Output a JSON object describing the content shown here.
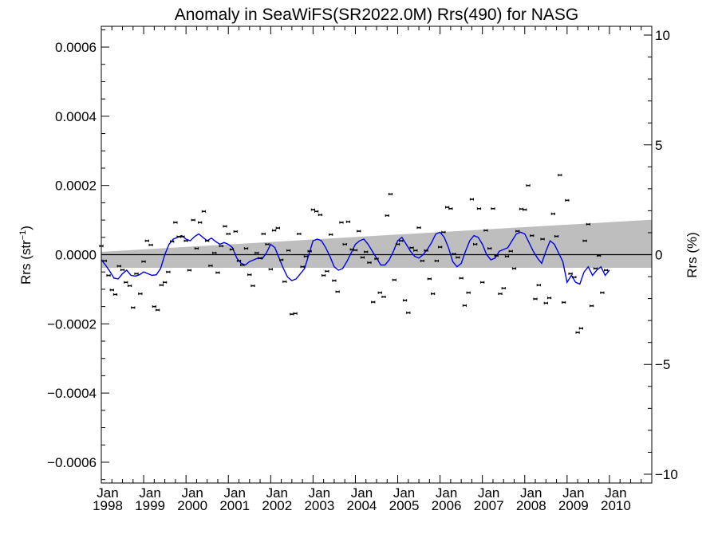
{
  "chart_data": {
    "type": "scatter",
    "title": "Anomaly in SeaWiFS(SR2022.0M) Rrs(490) for NASG",
    "ylabel_left": "Rrs (str",
    "ylabel_left_sup": "−1",
    "ylabel_left_close": ")",
    "ylabel_right": "Rrs (%)",
    "xlim": [
      1998.0,
      2011.0
    ],
    "ylim_left": [
      -0.00066,
      0.00066
    ],
    "ylim_right": [
      -10.4,
      10.4
    ],
    "yticks_left": [
      {
        "value": 0.0006,
        "label": "0.0006"
      },
      {
        "value": 0.0004,
        "label": "0.0004"
      },
      {
        "value": 0.0002,
        "label": "0.0002"
      },
      {
        "value": 0.0,
        "label": "0.0000"
      },
      {
        "value": -0.0002,
        "label": "−0.0002"
      },
      {
        "value": -0.0004,
        "label": "−0.0004"
      },
      {
        "value": -0.0006,
        "label": "−0.0006"
      }
    ],
    "yticks_right": [
      {
        "value": 10,
        "label": "10"
      },
      {
        "value": 5,
        "label": "5"
      },
      {
        "value": 0,
        "label": "0"
      },
      {
        "value": -5,
        "label": "−5"
      },
      {
        "value": -10,
        "label": "−10"
      }
    ],
    "xticks": [
      {
        "value": 1998,
        "month": "Jan",
        "year": "1998"
      },
      {
        "value": 1999,
        "month": "Jan",
        "year": "1999"
      },
      {
        "value": 2000,
        "month": "Jan",
        "year": "2000"
      },
      {
        "value": 2001,
        "month": "Jan",
        "year": "2001"
      },
      {
        "value": 2002,
        "month": "Jan",
        "year": "2002"
      },
      {
        "value": 2003,
        "month": "Jan",
        "year": "2003"
      },
      {
        "value": 2004,
        "month": "Jan",
        "year": "2004"
      },
      {
        "value": 2005,
        "month": "Jan",
        "year": "2005"
      },
      {
        "value": 2006,
        "month": "Jan",
        "year": "2006"
      },
      {
        "value": 2007,
        "month": "Jan",
        "year": "2007"
      },
      {
        "value": 2008,
        "month": "Jan",
        "year": "2008"
      },
      {
        "value": 2009,
        "month": "Jan",
        "year": "2009"
      },
      {
        "value": 2010,
        "month": "Jan",
        "year": "2010"
      }
    ],
    "zero_line": 0.0,
    "trend_band": {
      "x": [
        1998.0,
        2011.0
      ],
      "upper": [
        8e-06,
        0.000101
      ],
      "lower": [
        -3.8e-05,
        -3.8e-05
      ]
    },
    "points": [
      {
        "x": 1998.0,
        "y": 2.5e-05
      },
      {
        "x": 1998.08,
        "y": -1.8e-05
      },
      {
        "x": 1998.17,
        "y": -6e-05
      },
      {
        "x": 1998.25,
        "y": -0.000102
      },
      {
        "x": 1998.33,
        "y": -0.000115
      },
      {
        "x": 1998.42,
        "y": -3.3e-05
      },
      {
        "x": 1998.5,
        "y": -4.4e-05
      },
      {
        "x": 1998.58,
        "y": -8e-05
      },
      {
        "x": 1998.67,
        "y": -9e-05
      },
      {
        "x": 1998.75,
        "y": -0.000153
      },
      {
        "x": 1998.83,
        "y": -5.5e-05
      },
      {
        "x": 1998.92,
        "y": -0.000113
      },
      {
        "x": 1999.0,
        "y": -2e-05
      },
      {
        "x": 1999.08,
        "y": 4e-05
      },
      {
        "x": 1999.17,
        "y": 2.8e-05
      },
      {
        "x": 1999.25,
        "y": -0.00015
      },
      {
        "x": 1999.33,
        "y": -0.00016
      },
      {
        "x": 1999.42,
        "y": -8.8e-05
      },
      {
        "x": 1999.5,
        "y": -8e-05
      },
      {
        "x": 1999.58,
        "y": -5e-05
      },
      {
        "x": 1999.67,
        "y": 3.8e-05
      },
      {
        "x": 1999.75,
        "y": 9.3e-05
      },
      {
        "x": 1999.83,
        "y": 5.2e-05
      },
      {
        "x": 1999.92,
        "y": 5.2e-05
      },
      {
        "x": 2000.0,
        "y": 4e-05
      },
      {
        "x": 2000.08,
        "y": -4.5e-05
      },
      {
        "x": 2000.17,
        "y": 0.0001
      },
      {
        "x": 2000.25,
        "y": 1.8e-05
      },
      {
        "x": 2000.33,
        "y": 9.3e-05
      },
      {
        "x": 2000.42,
        "y": 0.000125
      },
      {
        "x": 2000.5,
        "y": 4e-05
      },
      {
        "x": 2000.58,
        "y": -3.2e-05
      },
      {
        "x": 2000.67,
        "y": 5e-06
      },
      {
        "x": 2000.75,
        "y": -5.2e-05
      },
      {
        "x": 2000.83,
        "y": 2.5e-05
      },
      {
        "x": 2000.92,
        "y": 8.2e-05
      },
      {
        "x": 2001.0,
        "y": 6e-05
      },
      {
        "x": 2001.08,
        "y": 1.5e-05
      },
      {
        "x": 2001.17,
        "y": 6.7e-05
      },
      {
        "x": 2001.25,
        "y": -1.8e-05
      },
      {
        "x": 2001.33,
        "y": -3e-05
      },
      {
        "x": 2001.42,
        "y": 1.8e-05
      },
      {
        "x": 2001.5,
        "y": -5.8e-05
      },
      {
        "x": 2001.58,
        "y": -9e-05
      },
      {
        "x": 2001.67,
        "y": 5e-06
      },
      {
        "x": 2001.75,
        "y": -1e-05
      },
      {
        "x": 2001.83,
        "y": 6e-05
      },
      {
        "x": 2001.92,
        "y": 3e-05
      },
      {
        "x": 2002.0,
        "y": -4.2e-05
      },
      {
        "x": 2002.08,
        "y": 7e-05
      },
      {
        "x": 2002.17,
        "y": 7.7e-05
      },
      {
        "x": 2002.25,
        "y": -1.5e-05
      },
      {
        "x": 2002.33,
        "y": -7.8e-05
      },
      {
        "x": 2002.42,
        "y": 1.2e-05
      },
      {
        "x": 2002.5,
        "y": -0.000172
      },
      {
        "x": 2002.58,
        "y": -0.00017
      },
      {
        "x": 2002.67,
        "y": 6e-05
      },
      {
        "x": 2002.75,
        "y": -3.5e-05
      },
      {
        "x": 2002.83,
        "y": -5e-06
      },
      {
        "x": 2002.92,
        "y": 1e-05
      },
      {
        "x": 2003.0,
        "y": 0.00013
      },
      {
        "x": 2003.08,
        "y": 0.000125
      },
      {
        "x": 2003.17,
        "y": 0.000115
      },
      {
        "x": 2003.25,
        "y": -6e-05
      },
      {
        "x": 2003.33,
        "y": -4.8e-05
      },
      {
        "x": 2003.42,
        "y": 5.8e-05
      },
      {
        "x": 2003.5,
        "y": -7.5e-05
      },
      {
        "x": 2003.58,
        "y": -0.000107
      },
      {
        "x": 2003.67,
        "y": 9.3e-05
      },
      {
        "x": 2003.75,
        "y": 3e-05
      },
      {
        "x": 2003.83,
        "y": 9.5e-05
      },
      {
        "x": 2003.92,
        "y": 1.5e-05
      },
      {
        "x": 2004.0,
        "y": 1.3e-05
      },
      {
        "x": 2004.08,
        "y": 6.8e-05
      },
      {
        "x": 2004.17,
        "y": -8e-06
      },
      {
        "x": 2004.25,
        "y": 8e-06
      },
      {
        "x": 2004.33,
        "y": -2.3e-05
      },
      {
        "x": 2004.42,
        "y": -0.000137
      },
      {
        "x": 2004.5,
        "y": -1.2e-05
      },
      {
        "x": 2004.58,
        "y": -0.00011
      },
      {
        "x": 2004.67,
        "y": -0.000122
      },
      {
        "x": 2004.75,
        "y": 0.000113
      },
      {
        "x": 2004.83,
        "y": 0.000175
      },
      {
        "x": 2004.92,
        "y": -7.3e-05
      },
      {
        "x": 2005.0,
        "y": 3e-05
      },
      {
        "x": 2005.08,
        "y": 4e-05
      },
      {
        "x": 2005.17,
        "y": -0.000132
      },
      {
        "x": 2005.25,
        "y": -0.000168
      },
      {
        "x": 2005.33,
        "y": 2e-05
      },
      {
        "x": 2005.42,
        "y": 1.2e-05
      },
      {
        "x": 2005.5,
        "y": 7.8e-05
      },
      {
        "x": 2005.58,
        "y": -1.8e-05
      },
      {
        "x": 2005.67,
        "y": 1.2e-05
      },
      {
        "x": 2005.75,
        "y": -7e-05
      },
      {
        "x": 2005.83,
        "y": -0.000113
      },
      {
        "x": 2005.92,
        "y": -1.8e-05
      },
      {
        "x": 2006.0,
        "y": 2.2e-05
      },
      {
        "x": 2006.08,
        "y": 6.5e-05
      },
      {
        "x": 2006.17,
        "y": 0.000137
      },
      {
        "x": 2006.25,
        "y": 0.000133
      },
      {
        "x": 2006.33,
        "y": 2e-06
      },
      {
        "x": 2006.42,
        "y": -8e-06
      },
      {
        "x": 2006.5,
        "y": -6.8e-05
      },
      {
        "x": 2006.58,
        "y": -0.000147
      },
      {
        "x": 2006.67,
        "y": -0.00011
      },
      {
        "x": 2006.75,
        "y": 0.00016
      },
      {
        "x": 2006.83,
        "y": 3e-05
      },
      {
        "x": 2006.92,
        "y": 0.000133
      },
      {
        "x": 2007.0,
        "y": -8e-05
      },
      {
        "x": 2007.08,
        "y": 7e-05
      },
      {
        "x": 2007.17,
        "y": 1.8e-05
      },
      {
        "x": 2007.25,
        "y": 0.000133
      },
      {
        "x": 2007.33,
        "y": -3e-06
      },
      {
        "x": 2007.42,
        "y": -0.000113
      },
      {
        "x": 2007.5,
        "y": -9.7e-05
      },
      {
        "x": 2007.58,
        "y": -5e-06
      },
      {
        "x": 2007.67,
        "y": 1e-05
      },
      {
        "x": 2007.75,
        "y": -4e-05
      },
      {
        "x": 2007.83,
        "y": 6.8e-05
      },
      {
        "x": 2007.92,
        "y": 0.000132
      },
      {
        "x": 2008.0,
        "y": 0.00013
      },
      {
        "x": 2008.08,
        "y": 0.0002
      },
      {
        "x": 2008.17,
        "y": 5.5e-05
      },
      {
        "x": 2008.25,
        "y": -0.000128
      },
      {
        "x": 2008.33,
        "y": -8.8e-05
      },
      {
        "x": 2008.42,
        "y": 4.5e-05
      },
      {
        "x": 2008.5,
        "y": -0.00014
      },
      {
        "x": 2008.58,
        "y": -0.000125
      },
      {
        "x": 2008.67,
        "y": 0.000118
      },
      {
        "x": 2008.75,
        "y": 5.3e-05
      },
      {
        "x": 2008.83,
        "y": 0.00023
      },
      {
        "x": 2008.92,
        "y": -0.000138
      },
      {
        "x": 2009.0,
        "y": 0.000157
      },
      {
        "x": 2009.08,
        "y": -5.5e-05
      },
      {
        "x": 2009.17,
        "y": -6.5e-05
      },
      {
        "x": 2009.25,
        "y": -0.000225
      },
      {
        "x": 2009.33,
        "y": -0.000213
      },
      {
        "x": 2009.42,
        "y": 4e-05
      },
      {
        "x": 2009.5,
        "y": 8.8e-05
      },
      {
        "x": 2009.58,
        "y": -0.000148
      },
      {
        "x": 2009.67,
        "y": -4e-05
      },
      {
        "x": 2009.75,
        "y": -3e-06
      },
      {
        "x": 2009.83,
        "y": -0.00011
      },
      {
        "x": 2009.92,
        "y": -4.5e-05
      }
    ],
    "error_halfwidth_x": 0.04,
    "error_halfheight_y": 3.5e-06,
    "smooth_line": {
      "color": "#0000ee",
      "x": [
        1998.0,
        1998.1,
        1998.2,
        1998.3,
        1998.4,
        1998.5,
        1998.6,
        1998.7,
        1998.8,
        1998.9,
        1999.0,
        1999.1,
        1999.2,
        1999.3,
        1999.4,
        1999.5,
        1999.6,
        1999.7,
        1999.8,
        1999.9,
        2000.0,
        2000.1,
        2000.2,
        2000.3,
        2000.4,
        2000.5,
        2000.6,
        2000.7,
        2000.8,
        2000.9,
        2001.0,
        2001.1,
        2001.2,
        2001.3,
        2001.4,
        2001.5,
        2001.6,
        2001.7,
        2001.8,
        2001.9,
        2002.0,
        2002.1,
        2002.2,
        2002.3,
        2002.4,
        2002.5,
        2002.6,
        2002.7,
        2002.8,
        2002.9,
        2003.0,
        2003.1,
        2003.2,
        2003.3,
        2003.4,
        2003.5,
        2003.6,
        2003.7,
        2003.8,
        2003.9,
        2004.0,
        2004.1,
        2004.2,
        2004.3,
        2004.4,
        2004.5,
        2004.6,
        2004.7,
        2004.8,
        2004.9,
        2005.0,
        2005.1,
        2005.2,
        2005.3,
        2005.4,
        2005.5,
        2005.6,
        2005.7,
        2005.8,
        2005.9,
        2006.0,
        2006.1,
        2006.2,
        2006.3,
        2006.4,
        2006.5,
        2006.6,
        2006.7,
        2006.8,
        2006.9,
        2007.0,
        2007.1,
        2007.2,
        2007.3,
        2007.4,
        2007.5,
        2007.6,
        2007.7,
        2007.8,
        2007.9,
        2008.0,
        2008.1,
        2008.2,
        2008.3,
        2008.4,
        2008.5,
        2008.6,
        2008.7,
        2008.8,
        2008.9,
        2009.0,
        2009.1,
        2009.2,
        2009.3,
        2009.4,
        2009.5,
        2009.6,
        2009.7,
        2009.8,
        2009.9,
        2010.0
      ],
      "y": [
        -1.5e-05,
        -3e-05,
        -4.8e-05,
        -6.8e-05,
        -7e-05,
        -5.5e-05,
        -4.5e-05,
        -6e-05,
        -6.2e-05,
        -5.8e-05,
        -5e-05,
        -5.5e-05,
        -6e-05,
        -5.8e-05,
        -4e-05,
        0.0,
        3e-05,
        4.5e-05,
        5e-05,
        5.5e-05,
        4.5e-05,
        4e-05,
        5.2e-05,
        6e-05,
        5e-05,
        4e-05,
        4.8e-05,
        3.8e-05,
        3e-05,
        3.5e-05,
        3e-05,
        2e-05,
        -1e-05,
        -2.5e-05,
        -3e-05,
        -2e-05,
        -1.5e-05,
        -1e-05,
        -1.2e-05,
        5e-06,
        3e-05,
        2e-05,
        -1e-05,
        -4e-05,
        -6.5e-05,
        -7.5e-05,
        -7e-05,
        -5.5e-05,
        -4e-05,
        0.0,
        4e-05,
        4.5e-05,
        4e-05,
        2e-05,
        -5e-06,
        -3.5e-05,
        -4.5e-05,
        -4e-05,
        -2e-05,
        5e-06,
        3e-05,
        4e-05,
        4.5e-05,
        3e-05,
        1e-05,
        -1e-05,
        -3e-05,
        -3e-05,
        -1.5e-05,
        1e-05,
        4e-05,
        5e-05,
        3e-05,
        1e-05,
        -5e-06,
        -1e-05,
        0.0,
        1.5e-05,
        3.5e-05,
        6e-05,
        6.5e-05,
        5e-05,
        2e-05,
        -2e-05,
        -3.5e-05,
        -2.5e-05,
        1e-05,
        4e-05,
        5.5e-05,
        5e-05,
        3e-05,
        0.0,
        -1.5e-05,
        -1e-05,
        1e-05,
        1.5e-05,
        2e-05,
        4e-05,
        6e-05,
        6.5e-05,
        6e-05,
        3.5e-05,
        1e-05,
        -1e-05,
        -2.5e-05,
        1e-05,
        4e-05,
        3e-05,
        5e-06,
        -2e-05,
        -8e-05,
        -6e-05,
        -8e-05,
        -8.5e-05,
        -5e-05,
        -3.5e-05,
        -6e-05,
        -4.5e-05,
        -3.5e-05,
        -6e-05,
        -4.5e-05
      ]
    },
    "colors": {
      "band": "#bebebe",
      "zero_line": "#000000",
      "axes": "#000000",
      "markers": "#000000",
      "smooth": "#0000ee"
    },
    "grid": false,
    "legend": "none"
  }
}
